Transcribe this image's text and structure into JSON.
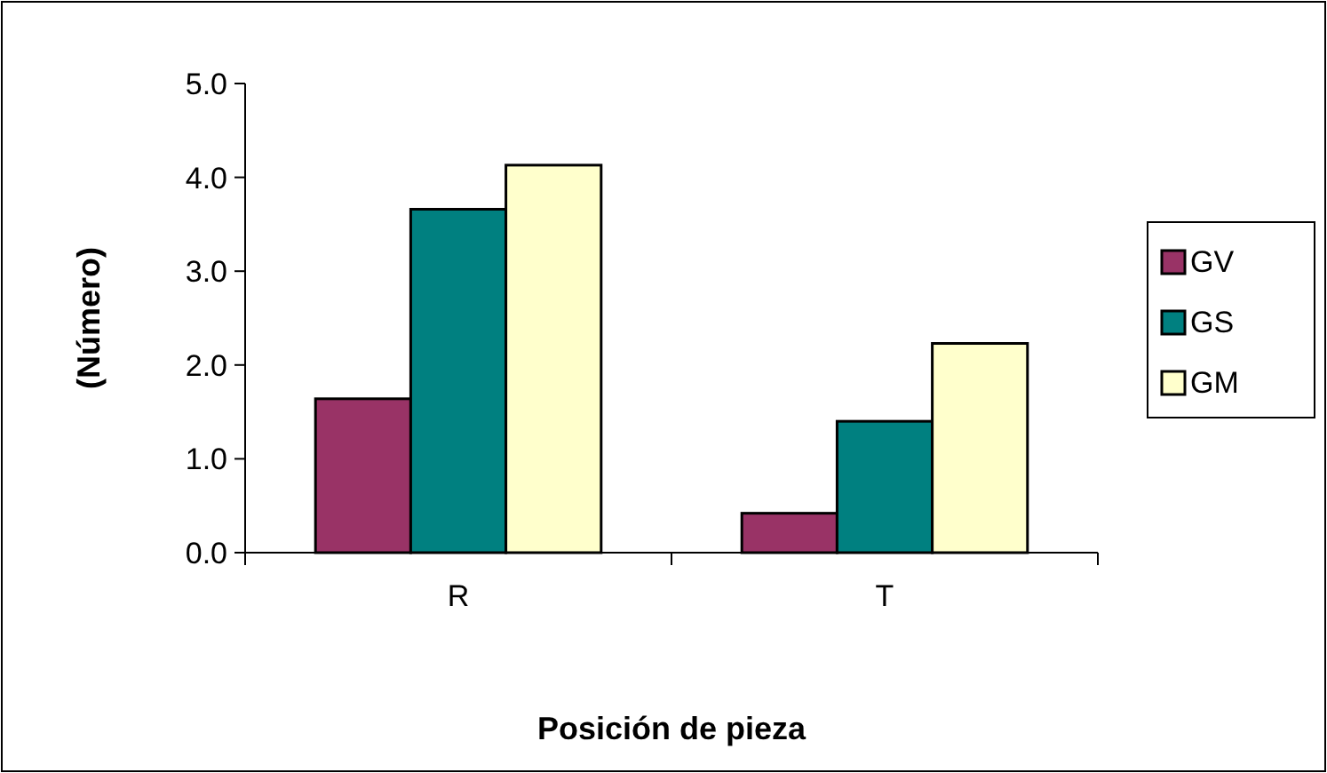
{
  "chart_data": {
    "type": "bar",
    "xlabel": "Posición de pieza",
    "ylabel": "(Número)",
    "categories": [
      "R",
      "T"
    ],
    "series": [
      {
        "name": "GV",
        "color": "#993366",
        "values": [
          1.64,
          0.42
        ]
      },
      {
        "name": "GS",
        "color": "#008080",
        "values": [
          3.66,
          1.4
        ]
      },
      {
        "name": "GM",
        "color": "#ffffcc",
        "values": [
          4.13,
          2.23
        ]
      }
    ],
    "ylim": [
      0,
      5
    ],
    "yticks": [
      {
        "value": 0,
        "label": "0.0"
      },
      {
        "value": 1,
        "label": "1.0"
      },
      {
        "value": 2,
        "label": "2.0"
      },
      {
        "value": 3,
        "label": "3.0"
      },
      {
        "value": 4,
        "label": "4.0"
      },
      {
        "value": 5,
        "label": "5.0"
      }
    ],
    "grid": false,
    "legend": "right"
  }
}
